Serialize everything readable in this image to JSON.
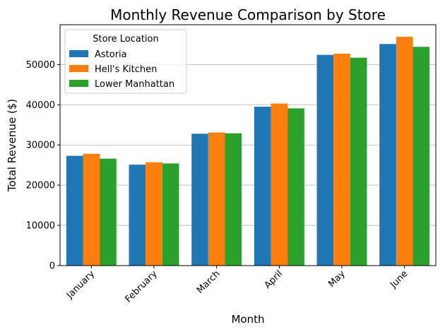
{
  "chart_data": {
    "type": "bar",
    "title": "Monthly Revenue Comparison by Store",
    "xlabel": "Month",
    "ylabel": "Total Revenue ($)",
    "categories": [
      "January",
      "February",
      "March",
      "April",
      "May",
      "June"
    ],
    "series": [
      {
        "name": "Astoria",
        "color": "#1f77b4",
        "values": [
          27300,
          25100,
          32800,
          39500,
          52400,
          55100
        ]
      },
      {
        "name": "Hell's Kitchen",
        "color": "#ff7f0e",
        "values": [
          27800,
          25700,
          33100,
          40300,
          52700,
          56900
        ]
      },
      {
        "name": "Lower Manhattan",
        "color": "#2ca02c",
        "values": [
          26600,
          25400,
          32900,
          39100,
          51700,
          54400
        ]
      }
    ],
    "ylim": [
      0,
      59900
    ],
    "yticks": [
      0,
      10000,
      20000,
      30000,
      40000,
      50000
    ],
    "ytick_labels": [
      "0",
      "10000",
      "20000",
      "30000",
      "40000",
      "50000"
    ],
    "grid": "y-major",
    "legend": {
      "title": "Store Location",
      "placement": "top-left"
    },
    "xtick_rotation": "45deg"
  }
}
